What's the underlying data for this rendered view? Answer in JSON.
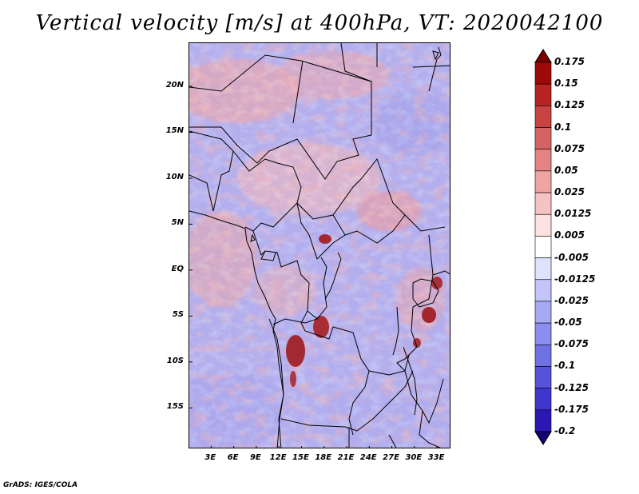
{
  "title": "Vertical velocity [m/s] at 400hPa, VT: 2020042100",
  "credit": "GrADS: IGES/COLA",
  "map": {
    "variable": "Vertical velocity",
    "units": "m/s",
    "level": "400hPa",
    "valid_time": "2020042100",
    "lat_range": [
      -19.5,
      24.7
    ],
    "lon_range": [
      0.1,
      34.9
    ],
    "lat_labels": [
      {
        "value": 20,
        "label": "20N"
      },
      {
        "value": 15,
        "label": "15N"
      },
      {
        "value": 10,
        "label": "10N"
      },
      {
        "value": 5,
        "label": "5N"
      },
      {
        "value": 0,
        "label": "EQ"
      },
      {
        "value": -5,
        "label": "5S"
      },
      {
        "value": -10,
        "label": "10S"
      },
      {
        "value": -15,
        "label": "15S"
      }
    ],
    "lon_labels": [
      {
        "value": 3,
        "label": "3E"
      },
      {
        "value": 6,
        "label": "6E"
      },
      {
        "value": 9,
        "label": "9E"
      },
      {
        "value": 12,
        "label": "12E"
      },
      {
        "value": 15,
        "label": "15E"
      },
      {
        "value": 18,
        "label": "18E"
      },
      {
        "value": 21,
        "label": "21E"
      },
      {
        "value": 24,
        "label": "24E"
      },
      {
        "value": 27,
        "label": "27E"
      },
      {
        "value": 30,
        "label": "30E"
      },
      {
        "value": 33,
        "label": "33E"
      }
    ]
  },
  "colorbar": {
    "colors": [
      "#150075",
      "#2c17b3",
      "#3f36cf",
      "#5554d8",
      "#6e72e2",
      "#8a8eee",
      "#a6aaf4",
      "#c3c5fa",
      "#e0e1fd",
      "#ffffff",
      "#fde0e0",
      "#f7c2c2",
      "#f0a3a3",
      "#e38383",
      "#d66363",
      "#c94343",
      "#b82323",
      "#a00909",
      "#7a0000"
    ],
    "labels": [
      "0.175",
      "0.15",
      "0.125",
      "0.1",
      "0.075",
      "0.05",
      "0.025",
      "0.0125",
      "0.005",
      "-0.005",
      "-0.0125",
      "-0.025",
      "-0.05",
      "-0.075",
      "-0.1",
      "-0.125",
      "-0.175",
      "-0.2"
    ]
  }
}
